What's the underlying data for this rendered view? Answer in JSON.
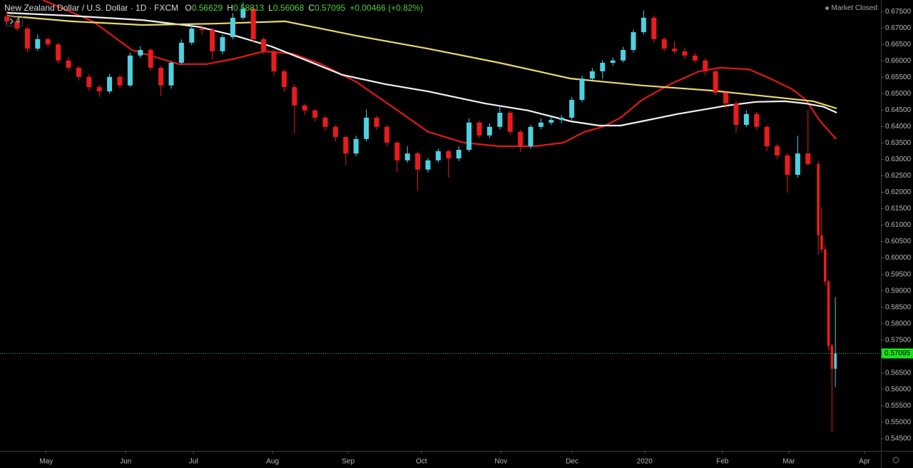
{
  "chart_data": {
    "type": "candlestick",
    "header": {
      "symbol": "New Zealand Dollar / U.S. Dollar · 1D · FXCM",
      "ohlc_labels": [
        "O",
        "H",
        "L",
        "C"
      ],
      "change_label": "+0.00466 (+0.82%)",
      "status": "Market Closed",
      "indicator_count": "4"
    },
    "up_color": "#4fd0e0",
    "down_color": "#e81c1c",
    "x": [
      2,
      5,
      8,
      11,
      14,
      17,
      20,
      23,
      26,
      29,
      32,
      35,
      38,
      41,
      44,
      47,
      50,
      53,
      56,
      59,
      62,
      65,
      68,
      71,
      74,
      77,
      80,
      83,
      86,
      89,
      92,
      95,
      98,
      101,
      104,
      107,
      110,
      113,
      116,
      119,
      122,
      125,
      128,
      131,
      134,
      137,
      140,
      143,
      146,
      149,
      152,
      155,
      158,
      161,
      164,
      167,
      170,
      173,
      176,
      179,
      182,
      185,
      188,
      191,
      194,
      197,
      200,
      203,
      206,
      209,
      212,
      215,
      218,
      221,
      224,
      227,
      230,
      233,
      236,
      239,
      240,
      241,
      242,
      243,
      244
    ],
    "ohlc": [
      [
        0.6735,
        0.6752,
        0.6712,
        0.672
      ],
      [
        0.672,
        0.6728,
        0.669,
        0.6698
      ],
      [
        0.6698,
        0.6705,
        0.6625,
        0.6637
      ],
      [
        0.6637,
        0.668,
        0.663,
        0.6666
      ],
      [
        0.6666,
        0.6672,
        0.664,
        0.665
      ],
      [
        0.665,
        0.6655,
        0.659,
        0.6601
      ],
      [
        0.6601,
        0.6612,
        0.657,
        0.6579
      ],
      [
        0.6579,
        0.6585,
        0.654,
        0.6551
      ],
      [
        0.6551,
        0.656,
        0.6508,
        0.652
      ],
      [
        0.652,
        0.6528,
        0.649,
        0.6507
      ],
      [
        0.6507,
        0.656,
        0.65,
        0.6551
      ],
      [
        0.6551,
        0.6558,
        0.6515,
        0.6525
      ],
      [
        0.6525,
        0.6625,
        0.652,
        0.6616
      ],
      [
        0.6616,
        0.6645,
        0.6608,
        0.6633
      ],
      [
        0.6633,
        0.6638,
        0.657,
        0.6579
      ],
      [
        0.6579,
        0.6585,
        0.6492,
        0.6525
      ],
      [
        0.6525,
        0.66,
        0.6515,
        0.6594
      ],
      [
        0.6594,
        0.6665,
        0.6588,
        0.6655
      ],
      [
        0.6655,
        0.671,
        0.6648,
        0.6698
      ],
      [
        0.6698,
        0.6712,
        0.668,
        0.6694
      ],
      [
        0.6694,
        0.67,
        0.6605,
        0.6629
      ],
      [
        0.6629,
        0.668,
        0.662,
        0.6672
      ],
      [
        0.6672,
        0.6745,
        0.6665,
        0.6731
      ],
      [
        0.6731,
        0.6778,
        0.6725,
        0.6759
      ],
      [
        0.6759,
        0.6765,
        0.6655,
        0.6666
      ],
      [
        0.6666,
        0.6672,
        0.662,
        0.6629
      ],
      [
        0.6629,
        0.6635,
        0.6555,
        0.6568
      ],
      [
        0.6568,
        0.6575,
        0.6505,
        0.652
      ],
      [
        0.652,
        0.6528,
        0.6378,
        0.6464
      ],
      [
        0.6464,
        0.647,
        0.6435,
        0.6449
      ],
      [
        0.6449,
        0.6455,
        0.6415,
        0.6427
      ],
      [
        0.6427,
        0.6433,
        0.6388,
        0.6399
      ],
      [
        0.6399,
        0.6405,
        0.6355,
        0.6368
      ],
      [
        0.6368,
        0.6372,
        0.6282,
        0.6318
      ],
      [
        0.6318,
        0.6372,
        0.631,
        0.6362
      ],
      [
        0.6362,
        0.6452,
        0.6355,
        0.6427
      ],
      [
        0.6427,
        0.6433,
        0.639,
        0.6399
      ],
      [
        0.6399,
        0.6405,
        0.634,
        0.6351
      ],
      [
        0.6351,
        0.6356,
        0.6262,
        0.6297
      ],
      [
        0.6297,
        0.634,
        0.629,
        0.6318
      ],
      [
        0.6318,
        0.6324,
        0.6205,
        0.6269
      ],
      [
        0.6269,
        0.6305,
        0.626,
        0.6297
      ],
      [
        0.6297,
        0.6333,
        0.629,
        0.6325
      ],
      [
        0.6325,
        0.633,
        0.6245,
        0.6303
      ],
      [
        0.6303,
        0.634,
        0.6295,
        0.6329
      ],
      [
        0.6329,
        0.6425,
        0.6322,
        0.6412
      ],
      [
        0.6412,
        0.6418,
        0.6365,
        0.6373
      ],
      [
        0.6373,
        0.641,
        0.6365,
        0.6399
      ],
      [
        0.6399,
        0.6465,
        0.6392,
        0.6442
      ],
      [
        0.6442,
        0.6448,
        0.6375,
        0.6384
      ],
      [
        0.6384,
        0.639,
        0.6322,
        0.634
      ],
      [
        0.634,
        0.6405,
        0.6332,
        0.6399
      ],
      [
        0.6399,
        0.6425,
        0.6392,
        0.6412
      ],
      [
        0.6412,
        0.6432,
        0.6405,
        0.642
      ],
      [
        0.642,
        0.6435,
        0.641,
        0.6427
      ],
      [
        0.6427,
        0.649,
        0.642,
        0.6481
      ],
      [
        0.6481,
        0.6555,
        0.6475,
        0.6546
      ],
      [
        0.6546,
        0.6578,
        0.654,
        0.6568
      ],
      [
        0.6568,
        0.6602,
        0.6545,
        0.6594
      ],
      [
        0.6594,
        0.661,
        0.6585,
        0.6601
      ],
      [
        0.6601,
        0.6642,
        0.6595,
        0.6633
      ],
      [
        0.6633,
        0.6695,
        0.6625,
        0.6687
      ],
      [
        0.6687,
        0.6753,
        0.668,
        0.6731
      ],
      [
        0.6731,
        0.6738,
        0.6655,
        0.6666
      ],
      [
        0.6666,
        0.6672,
        0.6628,
        0.6637
      ],
      [
        0.6637,
        0.666,
        0.6622,
        0.6629
      ],
      [
        0.6629,
        0.664,
        0.6605,
        0.6616
      ],
      [
        0.6616,
        0.6625,
        0.6592,
        0.6601
      ],
      [
        0.6601,
        0.6608,
        0.6555,
        0.6568
      ],
      [
        0.6568,
        0.6572,
        0.6495,
        0.6503
      ],
      [
        0.6503,
        0.651,
        0.6455,
        0.647
      ],
      [
        0.647,
        0.6478,
        0.638,
        0.6405
      ],
      [
        0.6405,
        0.645,
        0.6398,
        0.6438
      ],
      [
        0.6438,
        0.6445,
        0.639,
        0.6399
      ],
      [
        0.6399,
        0.6405,
        0.6325,
        0.634
      ],
      [
        0.634,
        0.6348,
        0.63,
        0.6312
      ],
      [
        0.6312,
        0.6318,
        0.6198,
        0.6253
      ],
      [
        0.6253,
        0.6372,
        0.6245,
        0.6318
      ],
      [
        0.6318,
        0.645,
        0.628,
        0.6286
      ],
      [
        0.6286,
        0.6295,
        0.601,
        0.6069
      ],
      [
        0.6069,
        0.6155,
        0.6015,
        0.6026
      ],
      [
        0.6026,
        0.604,
        0.5915,
        0.5928
      ],
      [
        0.5928,
        0.5935,
        0.572,
        0.5733
      ],
      [
        0.5733,
        0.574,
        0.547,
        0.5663
      ],
      [
        0.56629,
        0.58813,
        0.56068,
        0.57095
      ]
    ],
    "lines": [
      {
        "color": "#e01818",
        "x": [
          12.5,
          27.1,
          38.5,
          52.1,
          60.4,
          68.8,
          77.1,
          85.4,
          93.8,
          104.2,
          114.6,
          125,
          135.4,
          145.8,
          156.3,
          164.6,
          170.8,
          176,
          181.3,
          187.5,
          195.8,
          204.2,
          210.4,
          218.8,
          225,
          231.3,
          235.4,
          239.6,
          244.2
        ],
        "values": [
          0.6785,
          0.672,
          0.6633,
          0.659,
          0.659,
          0.6607,
          0.6629,
          0.6622,
          0.659,
          0.6535,
          0.646,
          0.6384,
          0.6351,
          0.634,
          0.634,
          0.6351,
          0.6384,
          0.6399,
          0.6427,
          0.6481,
          0.6529,
          0.6568,
          0.6579,
          0.6574,
          0.6546,
          0.6514,
          0.6481,
          0.6416,
          0.6362
        ]
      },
      {
        "color": "#f2f2f2",
        "x": [
          2.1,
          20.8,
          41.7,
          58.3,
          68.8,
          79.2,
          89.6,
          100,
          112.5,
          125,
          141.7,
          154.2,
          166.7,
          175,
          181.3,
          187.5,
          197.9,
          206.3,
          212.5,
          220.8,
          229.2,
          235.4,
          240.6,
          244.4
        ],
        "values": [
          0.6746,
          0.6737,
          0.6724,
          0.6703,
          0.6676,
          0.6644,
          0.6601,
          0.6557,
          0.6529,
          0.6507,
          0.647,
          0.6449,
          0.6416,
          0.6403,
          0.6403,
          0.6416,
          0.6438,
          0.6453,
          0.6464,
          0.6475,
          0.6477,
          0.647,
          0.646,
          0.6442
        ]
      },
      {
        "color": "#e9d86c",
        "x": [
          2.1,
          20.8,
          41.7,
          62.5,
          83.3,
          104.2,
          125,
          145.8,
          166.7,
          187.5,
          208.3,
          229.2,
          237.5,
          244.4
        ],
        "values": [
          0.6737,
          0.672,
          0.6709,
          0.6713,
          0.672,
          0.6676,
          0.6637,
          0.6594,
          0.6546,
          0.6525,
          0.6509,
          0.6486,
          0.6477,
          0.6455
        ]
      }
    ],
    "xlim": [
      0,
      257.3
    ],
    "xticks": [
      {
        "value": 13.5,
        "label": "May"
      },
      {
        "value": 36.7,
        "label": "Jun"
      },
      {
        "value": 56.5,
        "label": "Jul"
      },
      {
        "value": 79.6,
        "label": "Aug"
      },
      {
        "value": 101.7,
        "label": "Sep"
      },
      {
        "value": 123.1,
        "label": "Oct"
      },
      {
        "value": 146.3,
        "label": "Nov"
      },
      {
        "value": 167.1,
        "label": "Dec"
      },
      {
        "value": 188.3,
        "label": "2020"
      },
      {
        "value": 211,
        "label": "Feb"
      },
      {
        "value": 230.4,
        "label": "Mar"
      },
      {
        "value": 252.5,
        "label": "Apr"
      }
    ],
    "ylim": [
      0.5413,
      0.6785
    ],
    "yticks": [
      {
        "value": 0.545,
        "label": "0.54500"
      },
      {
        "value": 0.55,
        "label": "0.55000"
      },
      {
        "value": 0.555,
        "label": "0.55500"
      },
      {
        "value": 0.56,
        "label": "0.56000"
      },
      {
        "value": 0.565,
        "label": "0.56500"
      },
      {
        "value": 0.57,
        "label": "0.57000"
      },
      {
        "value": 0.575,
        "label": "0.57500"
      },
      {
        "value": 0.58,
        "label": "0.58000"
      },
      {
        "value": 0.585,
        "label": "0.58500"
      },
      {
        "value": 0.59,
        "label": "0.59000"
      },
      {
        "value": 0.595,
        "label": "0.59500"
      },
      {
        "value": 0.6,
        "label": "0.60000"
      },
      {
        "value": 0.605,
        "label": "0.60500"
      },
      {
        "value": 0.61,
        "label": "0.61000"
      },
      {
        "value": 0.615,
        "label": "0.61500"
      },
      {
        "value": 0.62,
        "label": "0.62000"
      },
      {
        "value": 0.625,
        "label": "0.62500"
      },
      {
        "value": 0.63,
        "label": "0.63000"
      },
      {
        "value": 0.635,
        "label": "0.63500"
      },
      {
        "value": 0.64,
        "label": "0.64000"
      },
      {
        "value": 0.645,
        "label": "0.64500"
      },
      {
        "value": 0.65,
        "label": "0.65000"
      },
      {
        "value": 0.655,
        "label": "0.65500"
      },
      {
        "value": 0.66,
        "label": "0.66000"
      },
      {
        "value": 0.665,
        "label": "0.66500"
      },
      {
        "value": 0.67,
        "label": "0.67000"
      },
      {
        "value": 0.675,
        "label": "0.67500"
      }
    ],
    "grid": false
  }
}
